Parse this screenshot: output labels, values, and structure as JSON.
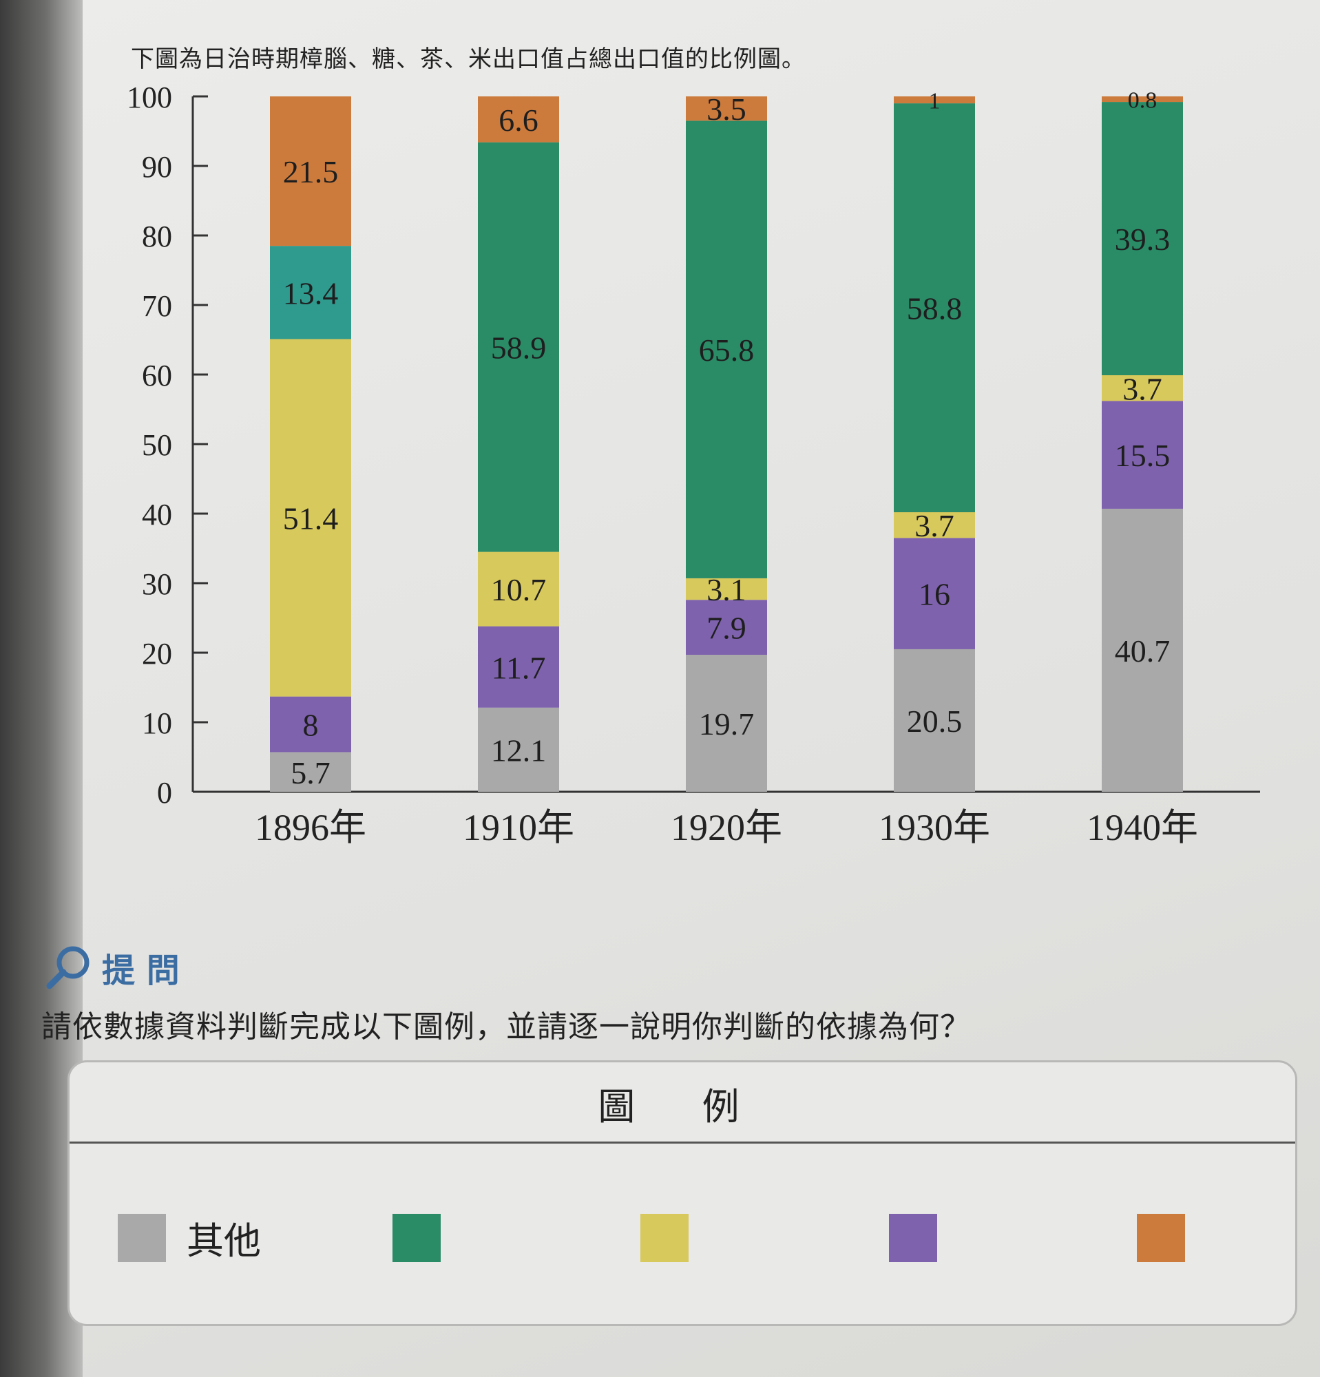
{
  "intro_text": "下圖為日治時期樟腦、糖、茶、米出口值占總出口值的比例圖。",
  "question": {
    "heading": "提 問",
    "text": "請依數據資料判斷完成以下圖例，並請逐一說明你判斷的依據為何？"
  },
  "legend": {
    "title": "圖 例",
    "items": [
      {
        "label": "其他",
        "color": "#a9a9a9"
      },
      {
        "label": "",
        "color": "#2a8b67"
      },
      {
        "label": "",
        "color": "#d8c95c"
      },
      {
        "label": "",
        "color": "#7e62ad"
      },
      {
        "label": "",
        "color": "#cc7b3d"
      }
    ]
  },
  "chart_data": {
    "type": "bar",
    "stacked": true,
    "categories": [
      "1896年",
      "1910年",
      "1920年",
      "1930年",
      "1940年"
    ],
    "ylim": [
      0,
      100
    ],
    "yticks": [
      0,
      10,
      20,
      30,
      40,
      50,
      60,
      70,
      80,
      90,
      100
    ],
    "series": [
      {
        "name": "其他",
        "color": "#a9a9a9",
        "values": [
          5.7,
          12.1,
          19.7,
          20.5,
          40.7
        ],
        "labels": [
          "5.7",
          "12.1",
          "19.7",
          "20.5",
          "40.7"
        ]
      },
      {
        "color": "#7e62ad",
        "values": [
          8,
          11.7,
          7.9,
          16,
          15.5
        ],
        "labels": [
          "8",
          "11.7",
          "7.9",
          "16",
          "15.5"
        ]
      },
      {
        "color": "#d8c95c",
        "values": [
          51.4,
          10.7,
          3.1,
          3.7,
          3.7
        ],
        "labels": [
          "51.4",
          "10.7",
          "3.1",
          "3.7",
          "3.7"
        ]
      },
      {
        "color": "#2a8b67",
        "values": [
          null,
          58.9,
          65.8,
          58.8,
          39.3
        ],
        "labels": [
          "",
          "58.9",
          "65.8",
          "58.8",
          "39.3"
        ]
      },
      {
        "color": "#2f9a8e",
        "values": [
          13.4,
          null,
          null,
          null,
          null
        ],
        "labels": [
          "13.4",
          "",
          "",
          "",
          ""
        ]
      },
      {
        "color": "#cc7b3d",
        "values": [
          21.5,
          6.6,
          3.5,
          1,
          0.8
        ],
        "labels": [
          "21.5",
          "6.6",
          "3.5",
          "1",
          "0.8"
        ]
      }
    ]
  }
}
